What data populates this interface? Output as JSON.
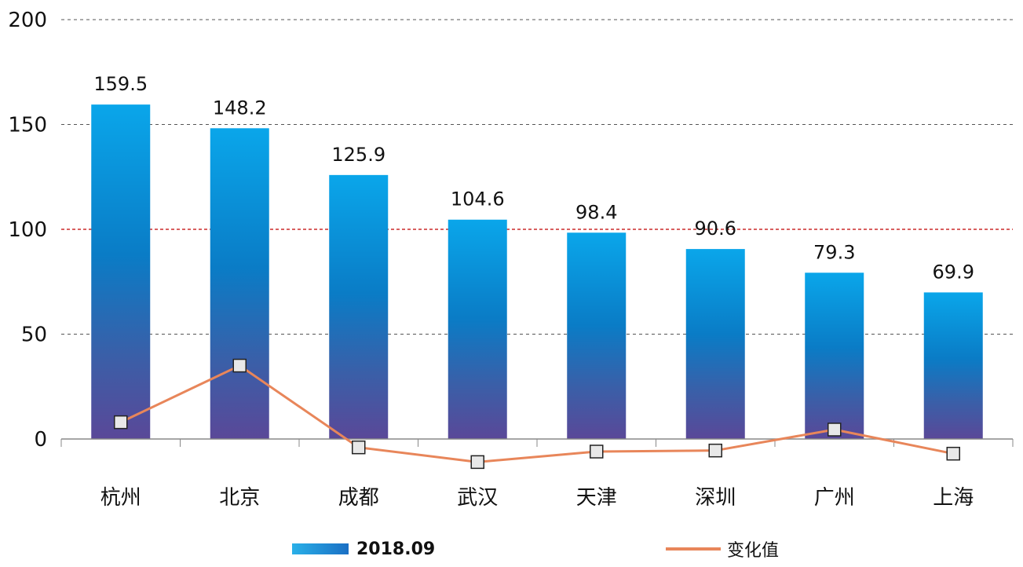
{
  "chart_data": {
    "type": "bar",
    "categories": [
      "杭州",
      "北京",
      "成都",
      "武汉",
      "天津",
      "深圳",
      "广州",
      "上海"
    ],
    "series": [
      {
        "name": "2018.09",
        "type": "bar",
        "values": [
          159.5,
          148.2,
          125.9,
          104.6,
          98.4,
          90.6,
          79.3,
          69.9
        ]
      },
      {
        "name": "变化值",
        "type": "line",
        "values": [
          8,
          35,
          -4,
          -11,
          -6,
          -5.5,
          4.5,
          -7
        ]
      }
    ],
    "data_labels": [
      "159.5",
      "148.2",
      "125.9",
      "104.6",
      "98.4",
      "90.6",
      "79.3",
      "69.9"
    ],
    "yticks": [
      "200",
      "150",
      "100",
      "50",
      "0"
    ],
    "ylim": [
      0,
      200
    ],
    "reference_line": 100,
    "grid": true,
    "legend_position": "bottom",
    "colors": {
      "bar_top": "#0aa3e8",
      "bar_mid": "#0a78c2",
      "bar_bottom": "#5a4a9a",
      "line": "#e8865a",
      "reference": "#cc2a2a",
      "marker_fill": "#e8e8e8"
    }
  },
  "legend": {
    "bar_label": "2018.09",
    "line_label": "变化值"
  }
}
